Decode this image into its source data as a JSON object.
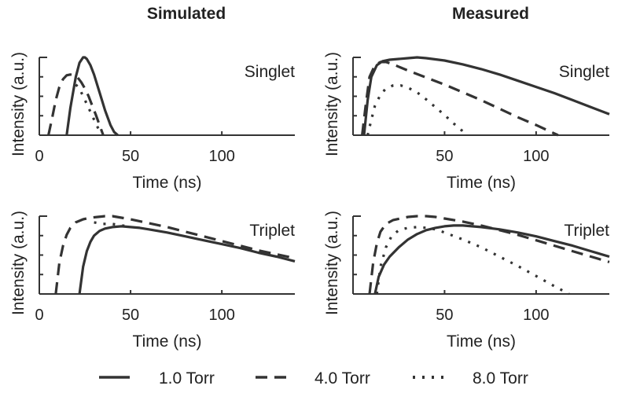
{
  "figure": {
    "column_titles": [
      "Simulated",
      "Measured"
    ],
    "legend": [
      {
        "label": "1.0 Torr",
        "style": "solid"
      },
      {
        "label": "4.0 Torr",
        "style": "dashed"
      },
      {
        "label": "8.0 Torr",
        "style": "dotted"
      }
    ],
    "line_color": "#333333"
  },
  "chart_data": [
    {
      "type": "line",
      "column": "Simulated",
      "panel_label": "Singlet",
      "xlabel": "Time (ns)",
      "ylabel": "Intensity (a.u.)",
      "xlim": [
        0,
        140
      ],
      "ylim": [
        0,
        1
      ],
      "xticks": [
        0,
        50,
        100
      ],
      "grid": false,
      "series": [
        {
          "name": "1.0 Torr",
          "x": [
            15,
            17,
            20,
            22,
            24,
            25,
            26,
            28,
            30,
            33,
            36,
            39,
            41,
            43
          ],
          "y": [
            0,
            0.35,
            0.75,
            0.93,
            1.0,
            1.0,
            0.98,
            0.9,
            0.78,
            0.55,
            0.32,
            0.13,
            0.04,
            0
          ]
        },
        {
          "name": "4.0 Torr",
          "x": [
            5,
            7,
            9,
            11,
            13,
            15,
            17,
            19,
            21,
            23,
            25,
            27,
            29,
            31,
            33,
            35
          ],
          "y": [
            0,
            0.22,
            0.45,
            0.62,
            0.72,
            0.77,
            0.78,
            0.77,
            0.74,
            0.68,
            0.6,
            0.5,
            0.38,
            0.26,
            0.13,
            0
          ]
        },
        {
          "name": "8.0 Torr",
          "x": [
            20,
            22,
            24,
            26,
            28,
            30,
            32,
            34,
            35
          ],
          "y": [
            0.65,
            0.6,
            0.5,
            0.4,
            0.3,
            0.2,
            0.1,
            0.03,
            0
          ]
        }
      ]
    },
    {
      "type": "line",
      "column": "Measured",
      "panel_label": "Singlet",
      "xlabel": "Time (ns)",
      "ylabel": "Intensity (a.u.)",
      "xlim": [
        0,
        140
      ],
      "ylim": [
        0,
        1
      ],
      "xticks": [
        50,
        100
      ],
      "grid": false,
      "series": [
        {
          "name": "1.0 Torr",
          "x": [
            6,
            8,
            10,
            13,
            16,
            20,
            25,
            30,
            35,
            40,
            50,
            60,
            70,
            80,
            90,
            100,
            110,
            120,
            130,
            140
          ],
          "y": [
            0,
            0.45,
            0.75,
            0.9,
            0.95,
            0.97,
            0.98,
            0.99,
            1.0,
            0.99,
            0.96,
            0.91,
            0.85,
            0.78,
            0.7,
            0.62,
            0.54,
            0.45,
            0.36,
            0.27
          ]
        },
        {
          "name": "4.0 Torr",
          "x": [
            5,
            7,
            9,
            12,
            15,
            18,
            22,
            26,
            30,
            40,
            50,
            60,
            70,
            80,
            90,
            100,
            112
          ],
          "y": [
            0,
            0.4,
            0.75,
            0.9,
            0.94,
            0.94,
            0.91,
            0.87,
            0.83,
            0.74,
            0.65,
            0.55,
            0.45,
            0.34,
            0.23,
            0.13,
            0
          ]
        },
        {
          "name": "8.0 Torr",
          "x": [
            8,
            10,
            12,
            15,
            18,
            22,
            26,
            30,
            35,
            40,
            45,
            50,
            55,
            60,
            62
          ],
          "y": [
            0,
            0.2,
            0.38,
            0.52,
            0.6,
            0.64,
            0.64,
            0.61,
            0.55,
            0.46,
            0.36,
            0.26,
            0.15,
            0.05,
            0
          ]
        }
      ]
    },
    {
      "type": "line",
      "column": "Simulated",
      "panel_label": "Triplet",
      "xlabel": "Time (ns)",
      "ylabel": "Intensity (a.u.)",
      "xlim": [
        0,
        140
      ],
      "ylim": [
        0,
        1
      ],
      "xticks": [
        0,
        50,
        100
      ],
      "grid": false,
      "series": [
        {
          "name": "1.0 Torr",
          "x": [
            22,
            24,
            26,
            28,
            30,
            33,
            36,
            40,
            45,
            50,
            55,
            60,
            70,
            80,
            90,
            100,
            110,
            120,
            130,
            140
          ],
          "y": [
            0,
            0.35,
            0.55,
            0.67,
            0.75,
            0.81,
            0.84,
            0.86,
            0.87,
            0.86,
            0.85,
            0.83,
            0.79,
            0.74,
            0.69,
            0.64,
            0.59,
            0.53,
            0.48,
            0.42
          ]
        },
        {
          "name": "4.0 Torr",
          "x": [
            9,
            11,
            13,
            15,
            17,
            20,
            24,
            28,
            32,
            36,
            40,
            45,
            50,
            60,
            70,
            80,
            90,
            100,
            110,
            120,
            130,
            140
          ],
          "y": [
            0,
            0.4,
            0.62,
            0.76,
            0.85,
            0.92,
            0.96,
            0.98,
            0.99,
            1.0,
            1.0,
            0.98,
            0.96,
            0.91,
            0.86,
            0.8,
            0.74,
            0.68,
            0.62,
            0.56,
            0.51,
            0.46
          ]
        },
        {
          "name": "8.0 Torr",
          "x": [
            30,
            35,
            40,
            45,
            50
          ],
          "y": [
            0.92,
            0.9,
            0.9,
            0.88,
            0.87
          ]
        }
      ]
    },
    {
      "type": "line",
      "column": "Measured",
      "panel_label": "Triplet",
      "xlabel": "Time (ns)",
      "ylabel": "Intensity (a.u.)",
      "xlim": [
        0,
        140
      ],
      "ylim": [
        0,
        1
      ],
      "xticks": [
        50,
        100
      ],
      "grid": false,
      "series": [
        {
          "name": "1.0 Torr",
          "x": [
            12,
            14,
            17,
            20,
            25,
            30,
            35,
            40,
            45,
            50,
            55,
            60,
            70,
            80,
            90,
            100,
            110,
            120,
            130,
            140
          ],
          "y": [
            0,
            0.22,
            0.38,
            0.48,
            0.6,
            0.7,
            0.77,
            0.82,
            0.85,
            0.87,
            0.88,
            0.88,
            0.86,
            0.83,
            0.79,
            0.74,
            0.68,
            0.62,
            0.55,
            0.48
          ]
        },
        {
          "name": "4.0 Torr",
          "x": [
            9,
            11,
            13,
            15,
            18,
            22,
            26,
            30,
            35,
            40,
            45,
            50,
            60,
            70,
            80,
            90,
            100,
            110,
            120,
            130,
            140
          ],
          "y": [
            0,
            0.4,
            0.65,
            0.8,
            0.9,
            0.95,
            0.97,
            0.99,
            1.0,
            1.0,
            0.99,
            0.97,
            0.93,
            0.88,
            0.82,
            0.76,
            0.69,
            0.62,
            0.55,
            0.48,
            0.41
          ]
        },
        {
          "name": "8.0 Torr",
          "x": [
            13,
            15,
            18,
            21,
            25,
            30,
            35,
            40,
            45,
            50,
            60,
            70,
            80,
            90,
            100,
            110,
            118
          ],
          "y": [
            0,
            0.35,
            0.6,
            0.74,
            0.82,
            0.85,
            0.86,
            0.85,
            0.83,
            0.79,
            0.7,
            0.6,
            0.48,
            0.36,
            0.23,
            0.1,
            0
          ]
        }
      ]
    }
  ]
}
